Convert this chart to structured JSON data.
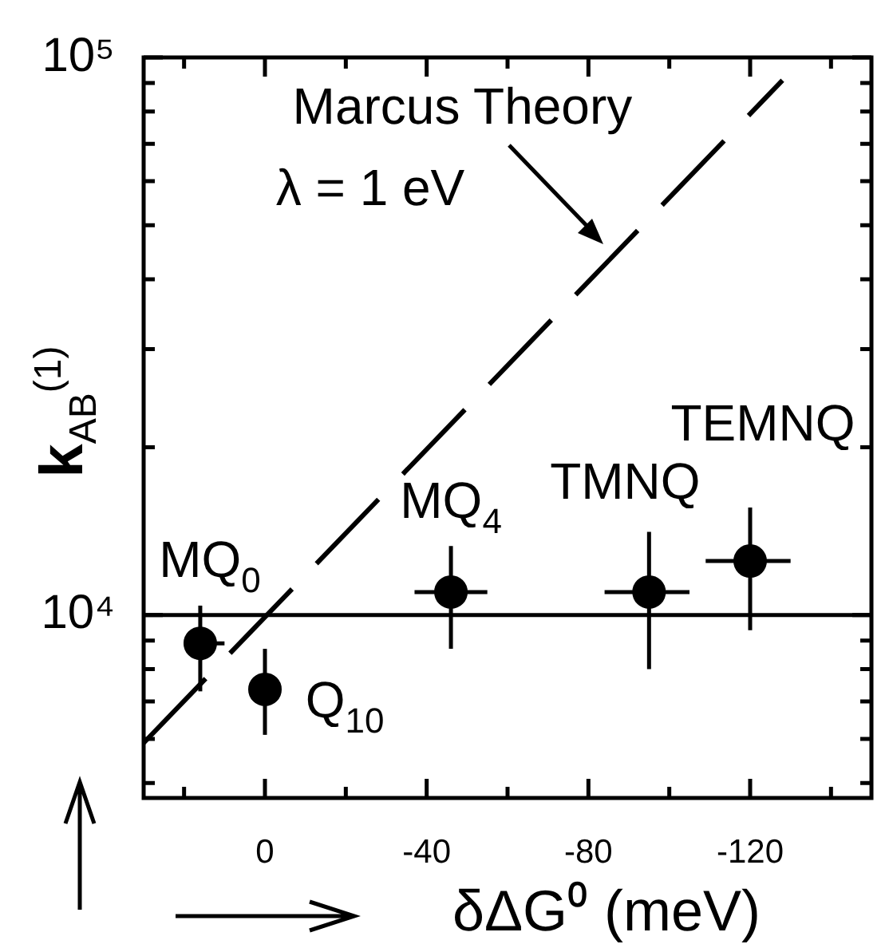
{
  "chart_data": {
    "type": "scatter",
    "xlabel": "δΔG⁰ (meV)",
    "ylabel": "k$_{AB}$$^{(1)}$",
    "log": "y",
    "grid": false,
    "legend": false,
    "marker": "circle",
    "xlim": [
      30,
      -150
    ],
    "xticks": [
      {
        "value": 20,
        "label": null
      },
      0,
      {
        "value": -20,
        "label": null
      },
      -40,
      {
        "value": -60,
        "label": null
      },
      -80,
      {
        "value": -100,
        "label": null
      },
      -120,
      {
        "value": -140,
        "label": null
      }
    ],
    "ylim": [
      4700,
      100000
    ],
    "yticks": [
      {
        "value": 5000,
        "label": null
      },
      {
        "value": 6000,
        "label": null
      },
      {
        "value": 7000,
        "label": null
      },
      {
        "value": 8000,
        "label": null
      },
      {
        "value": 9000,
        "label": null
      },
      {
        "value": 10000,
        "label": "10⁴"
      },
      {
        "value": 20000,
        "label": null
      },
      {
        "value": 30000,
        "label": null
      },
      {
        "value": 40000,
        "label": null
      },
      {
        "value": 50000,
        "label": null
      },
      {
        "value": 60000,
        "label": null
      },
      {
        "value": 70000,
        "label": null
      },
      {
        "value": 80000,
        "label": null
      },
      {
        "value": 90000,
        "label": null
      },
      {
        "value": 100000,
        "label": "10⁵"
      }
    ],
    "series": [
      {
        "color": "#000000",
        "x": [
          16,
          0,
          -46,
          -95,
          -120
        ],
        "values": [
          8900,
          7360,
          11000,
          11000,
          12500
        ],
        "errors": [
          [
            7300,
            10400
          ],
          [
            6100,
            8700
          ],
          [
            8700,
            13300
          ],
          [
            8000,
            14100
          ],
          [
            9400,
            15600
          ]
        ],
        "xerrors": [
          [
            10,
            20
          ],
          null,
          [
            -55,
            -37
          ],
          [
            -105,
            -84
          ],
          [
            -130,
            -109
          ]
        ]
      },
      {
        "type": "line",
        "color": "#000000",
        "line_style": "dashed",
        "marker": "none",
        "x": [
          30,
          -128
        ],
        "values": [
          5900,
          91000
        ]
      }
    ],
    "ref_lines": [
      {
        "axis": "y",
        "value": 10000,
        "color": "#000000"
      }
    ],
    "annotations": [
      "Marcus Theory",
      "λ = 1 eV",
      {
        "text": "MQ$_{0}$",
        "x": 16,
        "y": 8900
      },
      {
        "text": "Q$_{10}$",
        "x": 0,
        "y": 7360
      },
      {
        "text": "MQ$_{4}$",
        "x": -46,
        "y": 11000
      },
      {
        "text": "TMNQ",
        "x": -95,
        "y": 11000
      },
      {
        "text": "TEMNQ",
        "x": -120,
        "y": 12500
      }
    ]
  }
}
